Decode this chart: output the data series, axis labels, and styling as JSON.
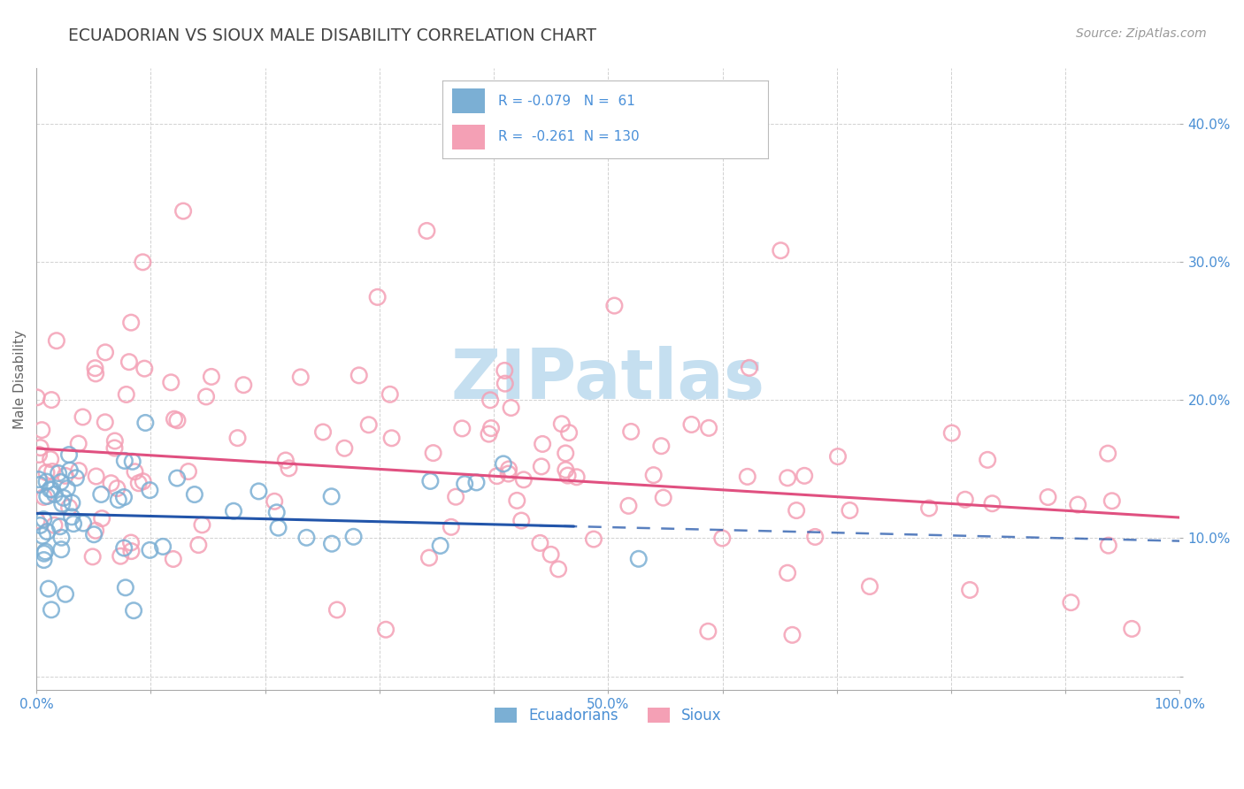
{
  "title": "ECUADORIAN VS SIOUX MALE DISABILITY CORRELATION CHART",
  "source": "Source: ZipAtlas.com",
  "ylabel": "Male Disability",
  "xlim": [
    0.0,
    1.0
  ],
  "ylim": [
    -0.01,
    0.44
  ],
  "yticks": [
    0.0,
    0.1,
    0.2,
    0.3,
    0.4
  ],
  "ytick_labels": [
    "",
    "10.0%",
    "20.0%",
    "30.0%",
    "40.0%"
  ],
  "xticks": [
    0.0,
    0.1,
    0.2,
    0.3,
    0.4,
    0.5,
    0.6,
    0.7,
    0.8,
    0.9,
    1.0
  ],
  "xtick_labels": [
    "0.0%",
    "",
    "",
    "",
    "",
    "50.0%",
    "",
    "",
    "",
    "",
    "100.0%"
  ],
  "legend_r_blue": "-0.079",
  "legend_n_blue": "61",
  "legend_r_pink": "-0.261",
  "legend_n_pink": "130",
  "blue_scatter_color": "#7bafd4",
  "pink_scatter_color": "#f4a0b5",
  "blue_line_color": "#2255aa",
  "pink_line_color": "#e05080",
  "legend_text_color": "#4a90d9",
  "watermark_color": "#c5dff0",
  "background_color": "#ffffff",
  "grid_color": "#cccccc",
  "title_color": "#444444",
  "axis_label_color": "#666666",
  "tick_color": "#4a8fd4",
  "source_color": "#999999",
  "legend_box_color": "#e8e8e8",
  "blue_trendline_solid_end": 0.47,
  "blue_trendline_dashed_start": 0.44,
  "blue_intercept": 0.118,
  "blue_slope": -0.02,
  "pink_intercept": 0.165,
  "pink_slope": -0.05
}
